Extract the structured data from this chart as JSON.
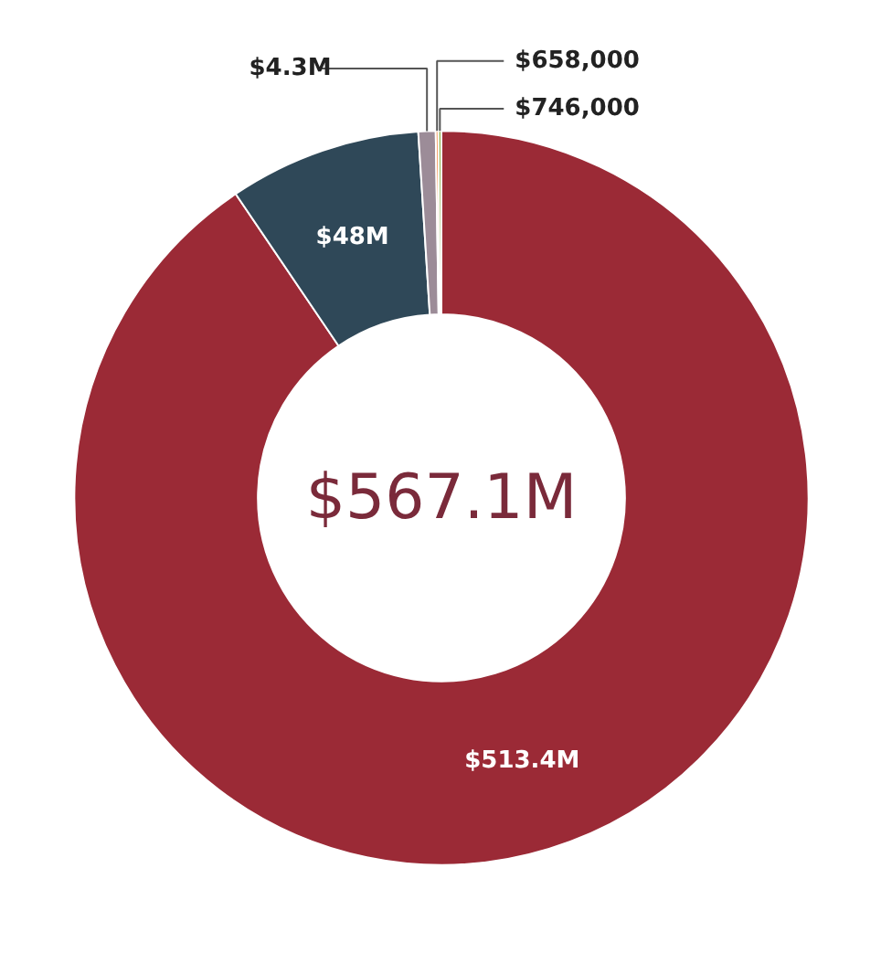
{
  "chart_data": {
    "type": "donut",
    "categories": [
      null,
      null,
      null,
      null,
      null
    ],
    "values": [
      513400000,
      48000000,
      4300000,
      658000,
      746000
    ],
    "value_labels": [
      "$513.4M",
      "$48M",
      "$4.3M",
      "$658,000",
      "$746,000"
    ],
    "colors": [
      "#9b2a36",
      "#2f4858",
      "#9c8c98",
      "#f47b2c",
      "#8db04a"
    ],
    "annotations": [
      "$567.1M"
    ]
  }
}
